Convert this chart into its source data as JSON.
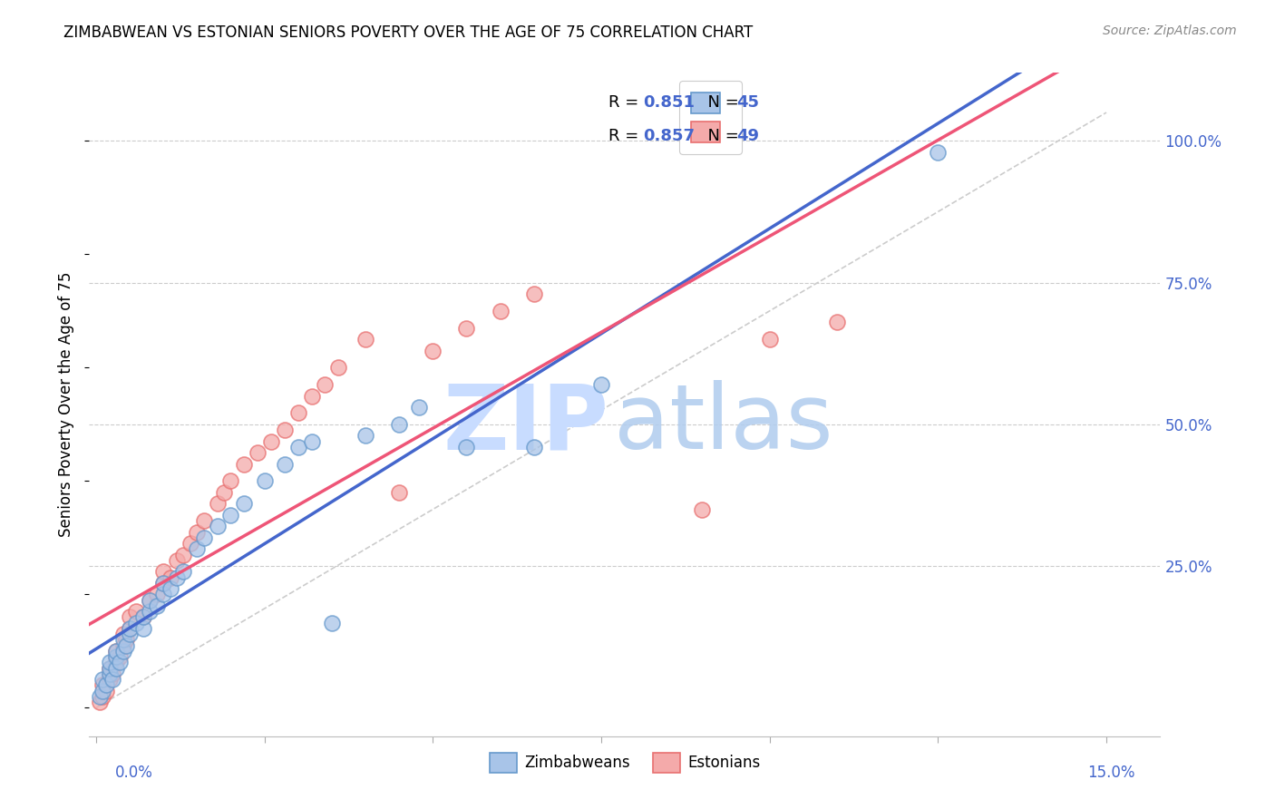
{
  "title": "ZIMBABWEAN VS ESTONIAN SENIORS POVERTY OVER THE AGE OF 75 CORRELATION CHART",
  "source": "Source: ZipAtlas.com",
  "ylabel": "Seniors Poverty Over the Age of 75",
  "color_zimbabwe_face": "#A8C4E8",
  "color_zimbabwe_edge": "#6699CC",
  "color_estonia_face": "#F4AAAA",
  "color_estonia_edge": "#E87070",
  "color_blue_line": "#4466CC",
  "color_pink_line": "#EE5577",
  "color_dash_ref": "#CCCCCC",
  "watermark_zip_color": "#C8DCFF",
  "watermark_atlas_color": "#B0CCEE",
  "legend_label1": "Zimbabweans",
  "legend_label2": "Estonians",
  "legend_r1": "0.851",
  "legend_n1": "45",
  "legend_r2": "0.857",
  "legend_n2": "49",
  "xlim_lo": -0.001,
  "xlim_hi": 0.158,
  "ylim_lo": -0.05,
  "ylim_hi": 1.12,
  "zim_x": [
    0.0005,
    0.001,
    0.001,
    0.0015,
    0.002,
    0.002,
    0.002,
    0.0025,
    0.003,
    0.003,
    0.003,
    0.0035,
    0.004,
    0.004,
    0.0045,
    0.005,
    0.005,
    0.006,
    0.007,
    0.007,
    0.008,
    0.008,
    0.009,
    0.01,
    0.01,
    0.011,
    0.012,
    0.013,
    0.015,
    0.016,
    0.018,
    0.02,
    0.022,
    0.025,
    0.028,
    0.03,
    0.032,
    0.035,
    0.04,
    0.045,
    0.048,
    0.055,
    0.065,
    0.075,
    0.125
  ],
  "zim_y": [
    0.02,
    0.03,
    0.05,
    0.04,
    0.06,
    0.07,
    0.08,
    0.05,
    0.07,
    0.09,
    0.1,
    0.08,
    0.1,
    0.12,
    0.11,
    0.13,
    0.14,
    0.15,
    0.14,
    0.16,
    0.17,
    0.19,
    0.18,
    0.2,
    0.22,
    0.21,
    0.23,
    0.24,
    0.28,
    0.3,
    0.32,
    0.34,
    0.36,
    0.4,
    0.43,
    0.46,
    0.47,
    0.15,
    0.48,
    0.5,
    0.53,
    0.46,
    0.46,
    0.57,
    0.98
  ],
  "est_x": [
    0.0005,
    0.001,
    0.001,
    0.0015,
    0.002,
    0.002,
    0.002,
    0.0025,
    0.003,
    0.003,
    0.003,
    0.0035,
    0.004,
    0.004,
    0.0045,
    0.005,
    0.005,
    0.006,
    0.007,
    0.008,
    0.009,
    0.01,
    0.01,
    0.011,
    0.012,
    0.013,
    0.014,
    0.015,
    0.016,
    0.018,
    0.019,
    0.02,
    0.022,
    0.024,
    0.026,
    0.028,
    0.03,
    0.032,
    0.034,
    0.036,
    0.04,
    0.045,
    0.05,
    0.055,
    0.06,
    0.065,
    0.09,
    0.1,
    0.11
  ],
  "est_y": [
    0.01,
    0.02,
    0.04,
    0.03,
    0.05,
    0.06,
    0.07,
    0.06,
    0.08,
    0.09,
    0.1,
    0.09,
    0.11,
    0.13,
    0.12,
    0.14,
    0.16,
    0.17,
    0.16,
    0.19,
    0.2,
    0.22,
    0.24,
    0.23,
    0.26,
    0.27,
    0.29,
    0.31,
    0.33,
    0.36,
    0.38,
    0.4,
    0.43,
    0.45,
    0.47,
    0.49,
    0.52,
    0.55,
    0.57,
    0.6,
    0.65,
    0.38,
    0.63,
    0.67,
    0.7,
    0.73,
    0.35,
    0.65,
    0.68
  ]
}
